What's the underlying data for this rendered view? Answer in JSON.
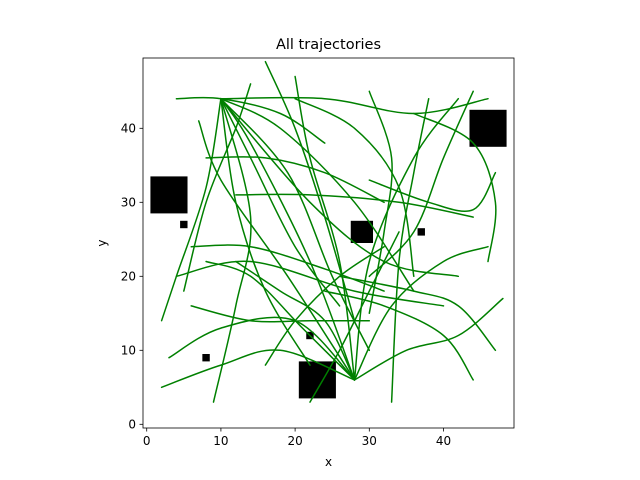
{
  "chart_data": {
    "type": "line",
    "title": "All trajectories",
    "xlabel": "x",
    "ylabel": "y",
    "xlim": [
      -0.5,
      49.5
    ],
    "ylim": [
      -0.5,
      49.5
    ],
    "xticks": [
      "0",
      "10",
      "20",
      "30",
      "40"
    ],
    "yticks": [
      "0",
      "10",
      "20",
      "30",
      "40"
    ],
    "grid": false,
    "legend": "none",
    "colors": {
      "trajectory": "#008000",
      "obstacle": "#000000"
    },
    "obstacles": [
      {
        "type": "square",
        "x": 3,
        "y": 31,
        "size": 5
      },
      {
        "type": "square",
        "x": 46,
        "y": 40,
        "size": 5
      },
      {
        "type": "square",
        "x": 29,
        "y": 26,
        "size": 3
      },
      {
        "type": "square",
        "x": 23,
        "y": 6,
        "size": 5
      },
      {
        "type": "square",
        "x": 5,
        "y": 27,
        "size": 1
      },
      {
        "type": "square",
        "x": 37,
        "y": 26,
        "size": 1
      },
      {
        "type": "square",
        "x": 22,
        "y": 12,
        "size": 1
      },
      {
        "type": "square",
        "x": 8,
        "y": 9,
        "size": 1
      }
    ],
    "series": [
      {
        "points": [
          [
            28,
            6
          ],
          [
            19,
            20
          ],
          [
            10,
            33
          ],
          [
            7,
            41
          ]
        ]
      },
      {
        "points": [
          [
            28,
            6
          ],
          [
            22,
            22
          ],
          [
            14,
            38
          ],
          [
            10,
            44
          ]
        ]
      },
      {
        "points": [
          [
            28,
            6
          ],
          [
            26,
            22
          ],
          [
            22,
            36
          ],
          [
            20,
            47
          ]
        ]
      },
      {
        "points": [
          [
            28,
            6
          ],
          [
            30,
            22
          ],
          [
            36,
            36
          ],
          [
            42,
            44
          ]
        ]
      },
      {
        "points": [
          [
            28,
            6
          ],
          [
            33,
            16
          ],
          [
            40,
            22
          ],
          [
            46,
            24
          ]
        ]
      },
      {
        "points": [
          [
            28,
            6
          ],
          [
            35,
            10
          ],
          [
            42,
            12
          ],
          [
            48,
            17
          ]
        ]
      },
      {
        "points": [
          [
            28,
            6
          ],
          [
            20,
            14
          ],
          [
            10,
            13
          ],
          [
            3,
            9
          ]
        ]
      },
      {
        "points": [
          [
            28,
            6
          ],
          [
            18,
            10
          ],
          [
            10,
            8
          ],
          [
            2,
            5
          ]
        ]
      },
      {
        "points": [
          [
            28,
            6
          ],
          [
            21,
            13
          ],
          [
            14,
            20
          ],
          [
            8,
            22
          ]
        ]
      },
      {
        "points": [
          [
            28,
            6
          ],
          [
            24,
            14
          ],
          [
            18,
            18
          ],
          [
            12,
            22
          ]
        ]
      },
      {
        "points": [
          [
            10,
            44
          ],
          [
            14,
            36
          ],
          [
            20,
            24
          ],
          [
            26,
            16
          ]
        ]
      },
      {
        "points": [
          [
            10,
            44
          ],
          [
            12,
            30
          ],
          [
            16,
            18
          ],
          [
            22,
            8
          ]
        ]
      },
      {
        "points": [
          [
            10,
            44
          ],
          [
            18,
            40
          ],
          [
            28,
            30
          ],
          [
            36,
            18
          ]
        ]
      },
      {
        "points": [
          [
            10,
            44
          ],
          [
            24,
            44
          ],
          [
            36,
            42
          ],
          [
            46,
            44
          ]
        ]
      },
      {
        "points": [
          [
            10,
            44
          ],
          [
            22,
            30
          ],
          [
            32,
            22
          ],
          [
            42,
            20
          ]
        ]
      },
      {
        "points": [
          [
            10,
            44
          ],
          [
            8,
            32
          ],
          [
            4,
            20
          ],
          [
            2,
            14
          ]
        ]
      },
      {
        "points": [
          [
            10,
            44
          ],
          [
            14,
            28
          ],
          [
            12,
            16
          ],
          [
            9,
            3
          ]
        ]
      },
      {
        "points": [
          [
            10,
            44
          ],
          [
            19,
            34
          ],
          [
            25,
            20
          ],
          [
            30,
            10
          ]
        ]
      },
      {
        "points": [
          [
            4,
            44
          ],
          [
            10,
            44
          ],
          [
            18,
            42
          ],
          [
            24,
            38
          ]
        ]
      },
      {
        "points": [
          [
            30,
            33
          ],
          [
            38,
            30
          ],
          [
            44,
            29
          ],
          [
            47,
            34
          ]
        ]
      },
      {
        "points": [
          [
            12,
            31
          ],
          [
            22,
            31
          ],
          [
            34,
            30
          ],
          [
            44,
            28
          ]
        ]
      },
      {
        "points": [
          [
            6,
            24
          ],
          [
            14,
            24
          ],
          [
            24,
            21
          ],
          [
            32,
            18
          ]
        ]
      },
      {
        "points": [
          [
            4,
            20
          ],
          [
            14,
            22
          ],
          [
            28,
            18
          ],
          [
            40,
            16
          ]
        ]
      },
      {
        "points": [
          [
            36,
            42
          ],
          [
            44,
            38
          ],
          [
            47,
            30
          ],
          [
            46,
            22
          ]
        ]
      },
      {
        "points": [
          [
            20,
            44
          ],
          [
            28,
            40
          ],
          [
            34,
            32
          ],
          [
            36,
            20
          ]
        ]
      },
      {
        "points": [
          [
            38,
            44
          ],
          [
            36,
            34
          ],
          [
            34,
            22
          ],
          [
            33,
            3
          ]
        ]
      },
      {
        "points": [
          [
            14,
            46
          ],
          [
            12,
            40
          ],
          [
            8,
            30
          ],
          [
            5,
            18
          ]
        ]
      },
      {
        "points": [
          [
            24,
            18
          ],
          [
            32,
            16
          ],
          [
            40,
            12
          ],
          [
            44,
            6
          ]
        ]
      },
      {
        "points": [
          [
            26,
            20
          ],
          [
            36,
            18
          ],
          [
            42,
            16
          ],
          [
            47,
            10
          ]
        ]
      },
      {
        "points": [
          [
            16,
            49
          ],
          [
            20,
            40
          ],
          [
            24,
            28
          ],
          [
            28,
            14
          ]
        ]
      },
      {
        "points": [
          [
            30,
            45
          ],
          [
            33,
            36
          ],
          [
            32,
            26
          ],
          [
            30,
            15
          ]
        ]
      },
      {
        "points": [
          [
            44,
            45
          ],
          [
            40,
            36
          ],
          [
            36,
            26
          ],
          [
            30,
            20
          ]
        ]
      },
      {
        "points": [
          [
            6,
            16
          ],
          [
            14,
            14
          ],
          [
            22,
            14
          ],
          [
            30,
            14
          ]
        ]
      },
      {
        "points": [
          [
            16,
            8
          ],
          [
            20,
            14
          ],
          [
            26,
            20
          ],
          [
            32,
            24
          ]
        ]
      },
      {
        "points": [
          [
            8,
            36
          ],
          [
            16,
            36
          ],
          [
            24,
            34
          ],
          [
            32,
            30
          ]
        ]
      },
      {
        "points": [
          [
            22,
            3
          ],
          [
            26,
            10
          ],
          [
            30,
            18
          ],
          [
            34,
            26
          ]
        ]
      }
    ]
  }
}
